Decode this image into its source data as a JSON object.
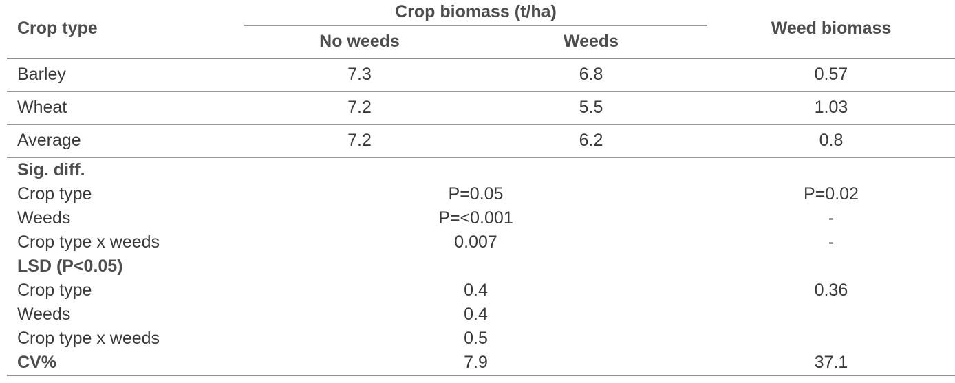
{
  "table": {
    "header": {
      "crop_type": "Crop type",
      "crop_biomass_group": "Crop biomass (t/ha)",
      "no_weeds": "No weeds",
      "weeds": "Weeds",
      "weed_biomass": "Weed biomass"
    },
    "data_rows": [
      {
        "label": "Barley",
        "no_weeds": "7.3",
        "weeds": "6.8",
        "weed_biomass": "0.57"
      },
      {
        "label": "Wheat",
        "no_weeds": "7.2",
        "weeds": "5.5",
        "weed_biomass": "1.03"
      },
      {
        "label": "Average",
        "no_weeds": "7.2",
        "weeds": "6.2",
        "weed_biomass": "0.8"
      }
    ],
    "sig_diff": {
      "heading": "Sig. diff.",
      "rows": [
        {
          "label": "Crop type",
          "crop_biomass": "P=0.05",
          "weed_biomass": "P=0.02"
        },
        {
          "label": "Weeds",
          "crop_biomass": "P=<0.001",
          "weed_biomass": "-"
        },
        {
          "label": "Crop type x weeds",
          "crop_biomass": "0.007",
          "weed_biomass": "-"
        }
      ]
    },
    "lsd": {
      "heading": "LSD (P<0.05)",
      "rows": [
        {
          "label": "Crop type",
          "crop_biomass": "0.4",
          "weed_biomass": "0.36"
        },
        {
          "label": "Weeds",
          "crop_biomass": "0.4",
          "weed_biomass": ""
        },
        {
          "label": "Crop type x weeds",
          "crop_biomass": "0.5",
          "weed_biomass": ""
        }
      ]
    },
    "cv": {
      "label": "CV%",
      "crop_biomass": "7.9",
      "weed_biomass": "37.1"
    }
  },
  "colors": {
    "text": "#3a3a3a",
    "heading_text": "#4d4d4d",
    "rule": "#979797",
    "background": "#ffffff"
  }
}
